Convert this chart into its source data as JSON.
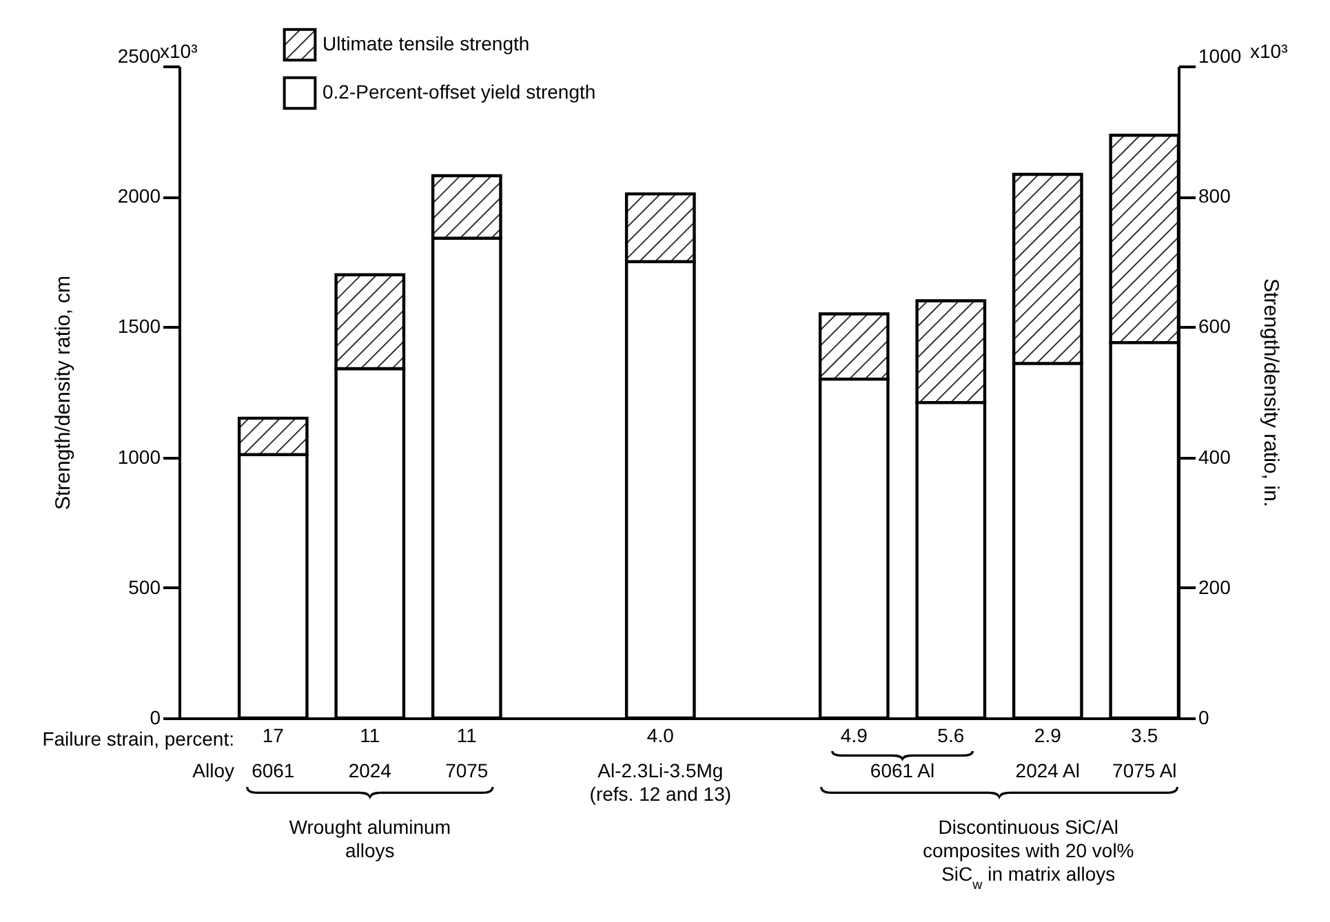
{
  "chart_data": {
    "type": "bar",
    "stacked": true,
    "ylabel": "Strength/density ratio, cm",
    "y2label": "Strength/density ratio, in.",
    "categories": [
      "17",
      "11",
      "11",
      null,
      "4.0",
      null,
      "4.9",
      "5.6",
      "2.9",
      "3.5"
    ],
    "ylim": [
      0,
      2500
    ],
    "yticks": [
      0,
      500,
      1000,
      1500,
      2000,
      2500
    ],
    "y2lim": [
      0,
      1000
    ],
    "y2ticks": [
      0,
      200,
      400,
      600,
      800,
      1000
    ],
    "series": [
      {
        "name": "0.2-Percent-offset yield strength",
        "color": "#ffffff",
        "values": [
          1010,
          1340,
          1840,
          null,
          1750,
          null,
          1300,
          1210,
          1360,
          1440
        ]
      },
      {
        "name": "Ultimate tensile strength",
        "color": "#000000",
        "values": [
          140,
          360,
          240,
          null,
          260,
          null,
          250,
          390,
          725,
          795
        ]
      }
    ],
    "legend": "top left",
    "grid": false,
    "annotations": [
      "Failure strain, percent:",
      "Alloy",
      "6061",
      "2024",
      "7075",
      "Al-2.3Li-3.5Mg (refs. 12 and 13)",
      "6061 Al",
      "2024 Al",
      "7075 Al",
      "Wrought aluminum alloys",
      "Discontinuous SiC/Al composites with 20 vol% SiC$_{w}$ in matrix alloys",
      "x10³",
      "x10³"
    ]
  }
}
